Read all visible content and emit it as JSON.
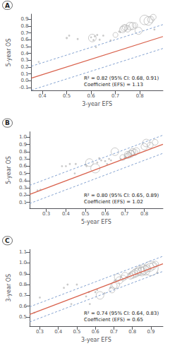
{
  "chart_data": [
    {
      "type": "scatter",
      "title": "A",
      "xlabel": "3-year EFS",
      "ylabel": "5-year OS",
      "annotation": "R² = 0.82 (95% CI: 0.68, 0.91)\nCoefficient (EFS) = 1.13",
      "xlim": [
        0.355,
        0.895
      ],
      "ylim": [
        -0.15,
        0.975
      ],
      "xticks": [
        0.4,
        0.5,
        0.6,
        0.7,
        0.8
      ],
      "yticks": [
        -0.1,
        {
          "value": 0,
          "label": "0.0"
        },
        0.1,
        0.2,
        0.3,
        0.4,
        0.5,
        0.6,
        0.7,
        0.8,
        0.9
      ],
      "grid": false,
      "series": [
        {
          "type": "scatter",
          "marker": "dot",
          "color": "#BBBBBB",
          "x": [
            0.385,
            0.5,
            0.51,
            0.545,
            0.6,
            0.61,
            0.615,
            0.62,
            0.625,
            0.635,
            0.65,
            0.68,
            0.715,
            0.72,
            0.86
          ],
          "values": [
            0.275,
            0.625,
            0.66,
            0.61,
            0.635,
            0.595,
            0.65,
            0.49,
            0.67,
            0.6,
            0.66,
            0.59,
            0.72,
            0.71,
            0.75
          ],
          "sizes": [
            4,
            5,
            4,
            4,
            4,
            4,
            4,
            4,
            4,
            4,
            4,
            4,
            4,
            4,
            4
          ]
        },
        {
          "type": "scatter",
          "marker": "circle",
          "color": "#AAAAAA",
          "x": [
            0.605,
            0.7,
            0.73,
            0.735,
            0.74,
            0.75,
            0.76,
            0.77,
            0.78,
            0.795,
            0.82,
            0.835,
            0.845,
            0.855
          ],
          "values": [
            0.625,
            0.67,
            0.75,
            0.77,
            0.78,
            0.76,
            0.8,
            0.8,
            0.81,
            0.73,
            0.89,
            0.875,
            0.895,
            0.93
          ],
          "sizes": [
            14,
            6,
            10,
            10,
            8,
            10,
            14,
            12,
            7,
            12,
            22,
            18,
            10,
            8
          ]
        },
        {
          "type": "line",
          "line_style": "solid",
          "color": "#D9614C",
          "x": [
            0.355,
            0.895
          ],
          "values": [
            0.03615,
            0.64635
          ]
        },
        {
          "type": "line",
          "line_style": "dashed",
          "color": "#7799CC",
          "x": [
            0.355,
            0.895
          ],
          "values": [
            0.21115,
            0.82135
          ]
        },
        {
          "type": "line",
          "line_style": "dashed",
          "color": "#7799CC",
          "x": [
            0.355,
            0.895
          ],
          "values": [
            -0.13885,
            0.47135
          ]
        }
      ]
    },
    {
      "type": "scatter",
      "title": "B",
      "xlabel": "5-year EFS",
      "ylabel": "5-year OS",
      "annotation": "R² = 0.80 (95% CI: 0.65, 0.89)\nCoefficient (EFS) = 1.02",
      "xlim": [
        0.215,
        0.895
      ],
      "ylim": [
        0.015,
        1.075
      ],
      "xticks": [
        0.3,
        0.4,
        0.5,
        0.6,
        0.7,
        0.8
      ],
      "yticks": [
        0.1,
        0.2,
        0.3,
        0.4,
        0.5,
        0.6,
        0.7,
        0.8,
        0.9,
        {
          "value": 1,
          "label": "1.0"
        }
      ],
      "grid": false,
      "series": [
        {
          "type": "scatter",
          "marker": "dot",
          "color": "#BBBBBB",
          "x": [
            0.255,
            0.27,
            0.38,
            0.4,
            0.42,
            0.445,
            0.45,
            0.5,
            0.505,
            0.56,
            0.57,
            0.58,
            0.6,
            0.61,
            0.62,
            0.63,
            0.68,
            0.7,
            0.705
          ],
          "values": [
            0.265,
            0.275,
            0.6,
            0.6,
            0.63,
            0.5,
            0.63,
            0.62,
            0.6,
            0.65,
            0.71,
            0.68,
            0.67,
            0.63,
            0.7,
            0.68,
            0.7,
            0.71,
            0.72
          ],
          "sizes": [
            4,
            4,
            4,
            4,
            4,
            4,
            4,
            4,
            4,
            4,
            4,
            4,
            4,
            4,
            4,
            4,
            4,
            4,
            4
          ]
        },
        {
          "type": "scatter",
          "marker": "circle",
          "color": "#AAAAAA",
          "x": [
            0.52,
            0.55,
            0.65,
            0.69,
            0.71,
            0.715,
            0.72,
            0.73,
            0.735,
            0.74,
            0.75,
            0.76,
            0.8,
            0.81,
            0.83,
            0.855
          ],
          "values": [
            0.65,
            0.57,
            0.8,
            0.72,
            0.74,
            0.76,
            0.75,
            0.77,
            0.78,
            0.8,
            0.79,
            0.81,
            0.87,
            0.92,
            0.89,
            0.93
          ],
          "sizes": [
            14,
            20,
            14,
            8,
            6,
            10,
            8,
            12,
            8,
            10,
            10,
            10,
            10,
            14,
            8,
            8
          ]
        },
        {
          "type": "line",
          "line_style": "solid",
          "color": "#D9614C",
          "x": [
            0.215,
            0.895
          ],
          "values": [
            0.2093,
            0.9029
          ]
        },
        {
          "type": "line",
          "line_style": "dashed",
          "color": "#7799CC",
          "x": [
            0.215,
            0.895
          ],
          "values": [
            0.3343,
            1.0279
          ]
        },
        {
          "type": "line",
          "line_style": "dashed",
          "color": "#7799CC",
          "x": [
            0.215,
            0.895
          ],
          "values": [
            0.0843,
            0.7779
          ]
        }
      ]
    },
    {
      "type": "scatter",
      "title": "C",
      "xlabel": "3-year EFS",
      "ylabel": "3-year OS",
      "annotation": "R² = 0.74 (95% CI: 0.64, 0.83)\nCoefficient (EFS) = 0.65",
      "xlim": [
        0.245,
        0.965
      ],
      "ylim": [
        0.415,
        1.125
      ],
      "xticks": [
        0.3,
        0.4,
        0.5,
        0.6,
        0.7,
        0.8,
        0.9
      ],
      "yticks": [
        0.5,
        0.6,
        0.7,
        0.8,
        0.9,
        {
          "value": 1,
          "label": "1.0"
        },
        1.1
      ],
      "grid": false,
      "series": [
        {
          "type": "scatter",
          "marker": "dot",
          "color": "#BBBBBB",
          "x": [
            0.27,
            0.3,
            0.43,
            0.45,
            0.47,
            0.5,
            0.55,
            0.565,
            0.57,
            0.6,
            0.61,
            0.65,
            0.68,
            0.705,
            0.77,
            0.785,
            0.845,
            0.935
          ],
          "values": [
            0.54,
            0.68,
            0.77,
            0.8,
            0.62,
            0.8,
            0.69,
            0.73,
            0.62,
            0.73,
            0.75,
            0.72,
            0.77,
            0.84,
            0.87,
            0.9,
            0.955,
            0.91
          ],
          "sizes": [
            4,
            4,
            4,
            4,
            4,
            4,
            4,
            4,
            4,
            4,
            4,
            4,
            4,
            4,
            4,
            4,
            4,
            4
          ]
        },
        {
          "type": "scatter",
          "marker": "circle",
          "color": "#AAAAAA",
          "x": [
            0.625,
            0.69,
            0.7,
            0.71,
            0.72,
            0.73,
            0.75,
            0.76,
            0.79,
            0.8,
            0.81,
            0.82,
            0.83,
            0.84,
            0.85,
            0.86,
            0.87,
            0.88,
            0.895,
            0.9,
            0.91,
            0.925
          ],
          "values": [
            0.7,
            0.75,
            0.79,
            0.8,
            0.87,
            0.84,
            0.86,
            0.88,
            0.88,
            0.89,
            0.9,
            0.91,
            0.92,
            0.93,
            0.92,
            0.94,
            0.93,
            0.95,
            0.96,
            0.95,
            0.97,
            0.99
          ],
          "sizes": [
            14,
            8,
            10,
            14,
            10,
            12,
            8,
            12,
            10,
            12,
            14,
            16,
            14,
            20,
            18,
            22,
            20,
            12,
            16,
            50,
            12,
            8
          ]
        },
        {
          "type": "line",
          "line_style": "solid",
          "color": "#D9614C",
          "x": [
            0.245,
            0.965
          ],
          "values": [
            0.52425,
            0.99225
          ]
        },
        {
          "type": "line",
          "line_style": "dashed",
          "color": "#7799CC",
          "x": [
            0.245,
            0.965
          ],
          "values": [
            0.59425,
            1.06225
          ]
        },
        {
          "type": "line",
          "line_style": "dashed",
          "color": "#7799CC",
          "x": [
            0.245,
            0.965
          ],
          "values": [
            0.45425,
            0.92225
          ]
        }
      ]
    }
  ]
}
